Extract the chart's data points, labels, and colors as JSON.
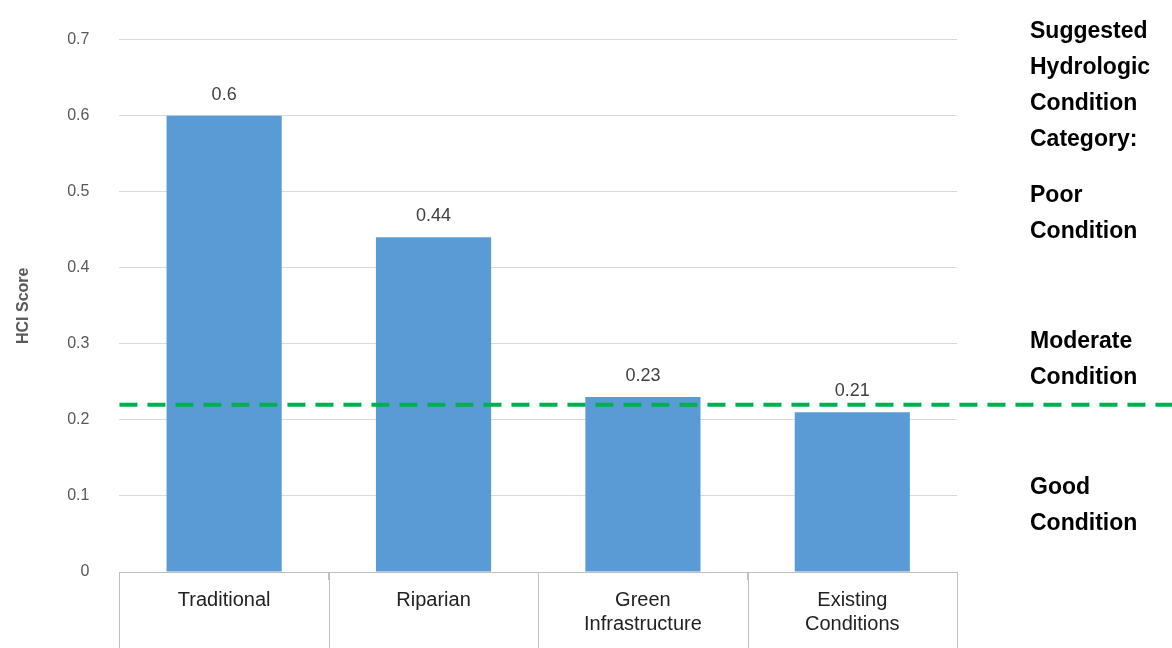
{
  "chart_data": {
    "type": "bar",
    "ylabel": "HCI Score",
    "categories": [
      "Traditional",
      "Riparian",
      "Green Infrastructure",
      "Existing Conditions"
    ],
    "values": [
      0.6,
      0.44,
      0.23,
      0.21
    ],
    "color": "#5b9bd5",
    "data_labels": true,
    "ylim": [
      0,
      0.7
    ],
    "yticks": [
      0,
      0.1,
      0.2,
      0.3,
      0.4,
      0.5,
      0.6,
      0.7
    ],
    "grid": "y",
    "ref_lines": [
      {
        "axis": "y",
        "value": 0.22,
        "color": "#00b050",
        "line_style": "dashed"
      }
    ],
    "annotations": [
      "Suggested Hydrologic Condition Category:",
      "Poor Condition",
      "Moderate Condition",
      "Good Condition"
    ]
  }
}
